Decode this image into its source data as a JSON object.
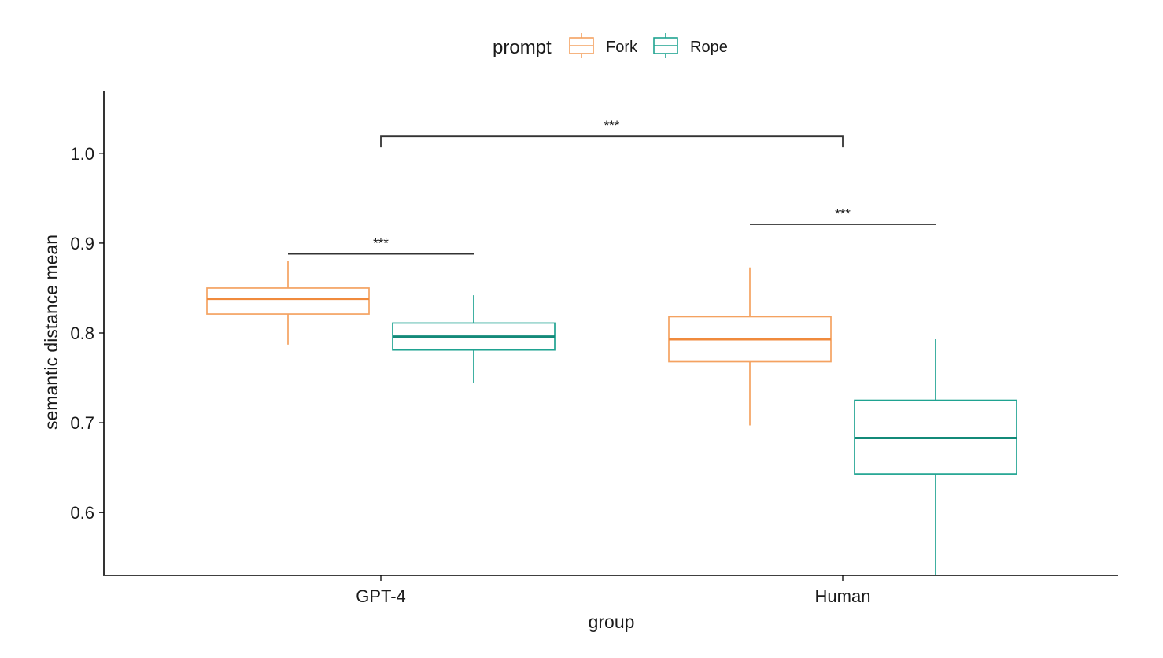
{
  "colors": {
    "fork": "#F4A261",
    "fork_median": "#F08A3C",
    "rope": "#1FA391",
    "rope_median": "#138A79",
    "axis": "#000000"
  },
  "chart_data": {
    "type": "box",
    "xlabel": "group",
    "ylabel": "semantic distance mean",
    "categories": [
      "GPT-4",
      "Human"
    ],
    "ylim": [
      0.53,
      1.07
    ],
    "yticks": [
      "0.6",
      "0.7",
      "0.8",
      "0.9",
      "1.0"
    ],
    "grid": false,
    "legend": {
      "title": "prompt",
      "position": "top",
      "entries": [
        "Fork",
        "Rope"
      ]
    },
    "series": [
      {
        "name": "Fork",
        "boxes": [
          {
            "group": "GPT-4",
            "whisker_low": 0.787,
            "q1": 0.821,
            "median": 0.838,
            "q3": 0.85,
            "whisker_high": 0.88
          },
          {
            "group": "Human",
            "whisker_low": 0.697,
            "q1": 0.768,
            "median": 0.793,
            "q3": 0.818,
            "whisker_high": 0.873
          }
        ]
      },
      {
        "name": "Rope",
        "boxes": [
          {
            "group": "GPT-4",
            "whisker_low": 0.744,
            "q1": 0.781,
            "median": 0.796,
            "q3": 0.811,
            "whisker_high": 0.842
          },
          {
            "group": "Human",
            "whisker_low": 0.53,
            "q1": 0.643,
            "median": 0.683,
            "q3": 0.725,
            "whisker_high": 0.793
          }
        ]
      }
    ],
    "annotations": [
      {
        "label": "***",
        "between": [
          "GPT-4 Fork",
          "GPT-4 Rope"
        ],
        "y": 0.888,
        "bracket_type": "bar"
      },
      {
        "label": "***",
        "between": [
          "Human Fork",
          "Human Rope"
        ],
        "y": 0.921,
        "bracket_type": "bar"
      },
      {
        "label": "***",
        "between": [
          "GPT-4",
          "Human"
        ],
        "y": 1.019,
        "bracket_type": "bracket"
      }
    ]
  }
}
